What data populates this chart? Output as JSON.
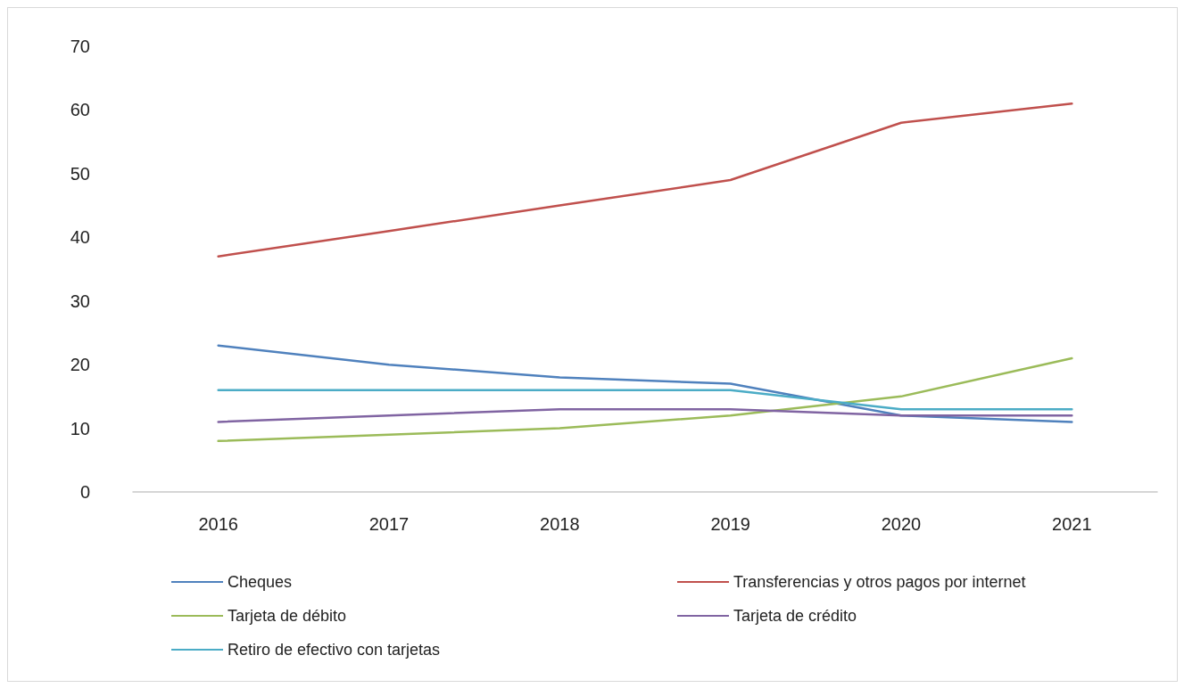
{
  "chart_data": {
    "type": "line",
    "categories": [
      "2016",
      "2017",
      "2018",
      "2019",
      "2020",
      "2021"
    ],
    "series": [
      {
        "name": "Cheques",
        "color": "#4f81bd",
        "values": [
          23,
          20,
          18,
          17,
          12,
          11
        ]
      },
      {
        "name": "Transferencias y otros pagos por internet",
        "color": "#c0504d",
        "values": [
          37,
          41,
          45,
          49,
          58,
          61
        ]
      },
      {
        "name": "Tarjeta de débito",
        "color": "#9bbb59",
        "values": [
          8,
          9,
          10,
          12,
          15,
          21
        ]
      },
      {
        "name": "Tarjeta de crédito",
        "color": "#8064a2",
        "values": [
          11,
          12,
          13,
          13,
          12,
          12
        ]
      },
      {
        "name": "Retiro de efectivo con tarjetas",
        "color": "#4bacc6",
        "values": [
          16,
          16,
          16,
          16,
          13,
          13
        ]
      }
    ],
    "ylim": [
      0,
      70
    ],
    "yticks": [
      0,
      10,
      20,
      30,
      40,
      50,
      60,
      70
    ],
    "grid": false,
    "legend": "bottom",
    "marker": "none",
    "line_style": "solid"
  }
}
